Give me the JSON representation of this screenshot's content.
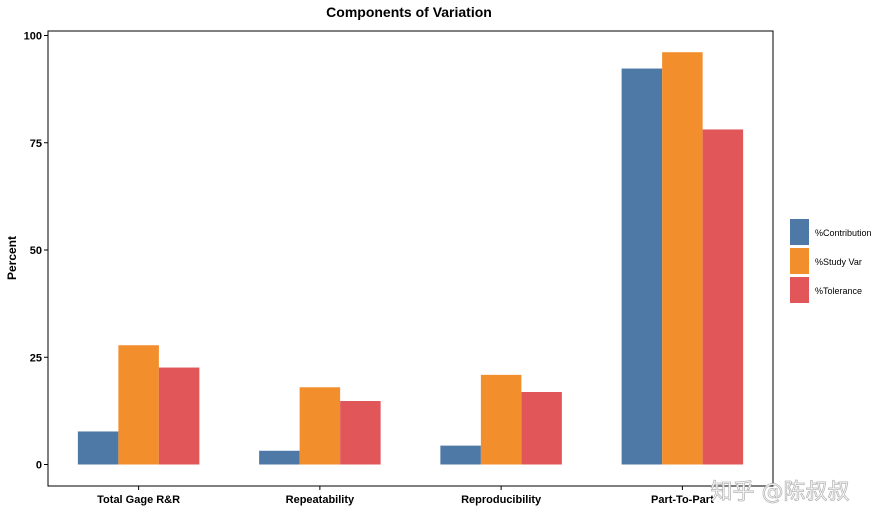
{
  "chart_data": {
    "type": "bar",
    "title": "Components of Variation",
    "xlabel": "",
    "ylabel": "Percent",
    "categories": [
      "Total Gage R&R",
      "Repeatability",
      "Reproducibility",
      "Part-To-Part"
    ],
    "series": [
      {
        "name": "%Contribution",
        "color": "#4e79a7",
        "values": [
          7.7,
          3.2,
          4.4,
          92.3
        ]
      },
      {
        "name": "%Study Var",
        "color": "#f28e2b",
        "values": [
          27.8,
          18.0,
          20.9,
          96.1
        ]
      },
      {
        "name": "%Tolerance",
        "color": "#e15759",
        "values": [
          22.6,
          14.8,
          16.9,
          78.1
        ]
      }
    ],
    "ylim": [
      -5,
      100
    ],
    "yticks": [
      0,
      25,
      50,
      75,
      100
    ],
    "grid": false,
    "legend_position": "right"
  },
  "watermark": "知乎 @陈叔叔"
}
